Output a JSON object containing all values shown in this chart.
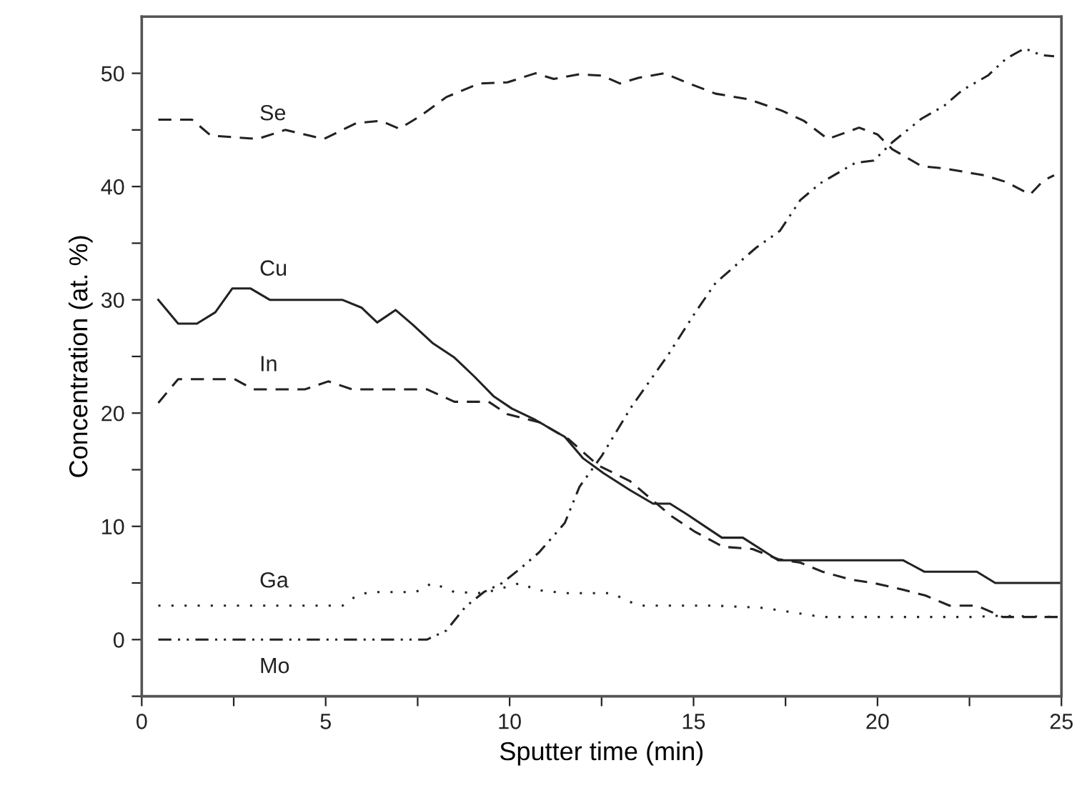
{
  "chart_data": {
    "type": "line",
    "xlabel": "Sputter time (min)",
    "ylabel": "Concentration (at. %)",
    "xlim": [
      0,
      25
    ],
    "ylim": [
      -5,
      55
    ],
    "xticks": [
      0,
      {
        "value": 2.5,
        "label": null
      },
      5,
      {
        "value": 7.5,
        "label": null
      },
      10,
      {
        "value": 12.5,
        "label": null
      },
      15,
      {
        "value": 17.5,
        "label": null
      },
      20,
      {
        "value": 22.5,
        "label": null
      },
      25
    ],
    "yticks": [
      {
        "value": -5,
        "label": null
      },
      0,
      {
        "value": 5,
        "label": null
      },
      10,
      {
        "value": 15,
        "label": null
      },
      20,
      {
        "value": 25,
        "label": null
      },
      30,
      {
        "value": 35,
        "label": null
      },
      40,
      {
        "value": 45,
        "label": null
      },
      50
    ],
    "grid": false,
    "legend": false,
    "marker": "none",
    "series": [
      {
        "name": "Se",
        "color": "#222222",
        "line_style": "dashed",
        "x": [
          0.45,
          1.37,
          1.88,
          3.15,
          3.9,
          4.95,
          5.83,
          6.5,
          7.0,
          7.56,
          8.28,
          9.17,
          9.94,
          10.7,
          11.2,
          11.86,
          12.5,
          13.0,
          13.5,
          14.2,
          14.8,
          15.6,
          16.5,
          17.4,
          18.0,
          18.65,
          19.5,
          20.0,
          20.4,
          21.2,
          21.8,
          22.9,
          23.5,
          24.15,
          24.5,
          24.8
        ],
        "values": [
          45.9,
          45.9,
          44.5,
          44.2,
          45.0,
          44.2,
          45.6,
          45.8,
          45.1,
          46.2,
          47.9,
          49.1,
          49.2,
          50.0,
          49.5,
          49.9,
          49.8,
          49.1,
          49.6,
          50.0,
          49.2,
          48.2,
          47.7,
          46.7,
          45.8,
          44.2,
          45.2,
          44.6,
          43.3,
          41.8,
          41.6,
          41.0,
          40.4,
          39.3,
          40.5,
          41.0
        ]
      },
      {
        "name": "Cu",
        "color": "#222222",
        "line_style": "solid",
        "x": [
          0.45,
          0.99,
          1.5,
          2.0,
          2.46,
          2.96,
          3.48,
          5.45,
          5.98,
          6.4,
          6.9,
          7.37,
          7.9,
          8.5,
          9.05,
          9.56,
          10.06,
          10.7,
          11.5,
          12.0,
          12.55,
          13.27,
          13.9,
          14.36,
          14.8,
          15.77,
          16.34,
          17.3,
          20.7,
          21.27,
          22.7,
          23.2,
          25.0
        ],
        "values": [
          30.0,
          27.9,
          27.9,
          28.9,
          31.0,
          31.0,
          30.0,
          30.0,
          29.3,
          28.0,
          29.1,
          27.8,
          26.2,
          24.9,
          23.2,
          21.5,
          20.4,
          19.4,
          17.9,
          16.0,
          14.7,
          13.2,
          12.0,
          12.0,
          11.1,
          9.0,
          9.0,
          7.0,
          7.0,
          6.0,
          6.0,
          5.0,
          5.0
        ]
      },
      {
        "name": "In",
        "color": "#222222",
        "line_style": "dashed",
        "x": [
          0.45,
          0.99,
          2.52,
          3.03,
          4.44,
          5.07,
          5.72,
          7.75,
          8.5,
          9.43,
          9.94,
          10.8,
          11.6,
          12.4,
          13.27,
          14.4,
          15.05,
          15.8,
          16.6,
          17.3,
          17.9,
          18.5,
          19.27,
          19.9,
          20.7,
          21.3,
          21.96,
          22.7,
          23.4,
          25.0
        ],
        "values": [
          20.9,
          23.0,
          23.0,
          22.1,
          22.1,
          22.8,
          22.1,
          22.1,
          21.0,
          21.0,
          19.9,
          19.2,
          17.7,
          15.4,
          14.0,
          10.9,
          9.5,
          8.2,
          8.0,
          7.1,
          6.8,
          6.0,
          5.3,
          5.0,
          4.4,
          3.9,
          3.0,
          3.0,
          2.0,
          2.0
        ]
      },
      {
        "name": "Ga",
        "color": "#222222",
        "line_style": "dotted",
        "x": [
          0.45,
          3.4,
          4.57,
          5.46,
          5.85,
          6.2,
          7.45,
          7.9,
          8.5,
          9.3,
          10.3,
          10.7,
          11.5,
          12.8,
          13.2,
          13.6,
          14.4,
          15.6,
          16.9,
          18.5,
          19.8,
          21.0,
          22.6,
          23.25,
          25.0
        ],
        "values": [
          3.0,
          3.0,
          3.0,
          3.0,
          3.9,
          4.2,
          4.2,
          5.0,
          4.2,
          4.1,
          5.0,
          4.4,
          4.1,
          4.1,
          3.4,
          3.0,
          3.0,
          3.0,
          2.8,
          2.0,
          2.0,
          2.0,
          2.0,
          2.1,
          2.0
        ]
      },
      {
        "name": "Mo",
        "color": "#222222",
        "line_style": "dashdot",
        "x": [
          0.45,
          7.75,
          8.28,
          8.8,
          9.3,
          9.8,
          10.3,
          10.8,
          11.5,
          11.9,
          12.5,
          13.3,
          14.3,
          15.05,
          15.6,
          16.7,
          17.35,
          17.9,
          18.45,
          19.4,
          19.9,
          20.4,
          21.2,
          21.8,
          22.3,
          23.0,
          23.5,
          24.0,
          24.45,
          24.8
        ],
        "values": [
          0.0,
          0.0,
          0.8,
          2.9,
          4.2,
          5.0,
          6.3,
          7.7,
          10.3,
          13.5,
          16.2,
          20.5,
          25.1,
          28.9,
          31.5,
          34.6,
          36.1,
          38.8,
          40.3,
          42.1,
          42.3,
          43.9,
          46.0,
          47.1,
          48.5,
          49.8,
          51.3,
          52.2,
          51.6,
          51.5
        ]
      }
    ]
  }
}
